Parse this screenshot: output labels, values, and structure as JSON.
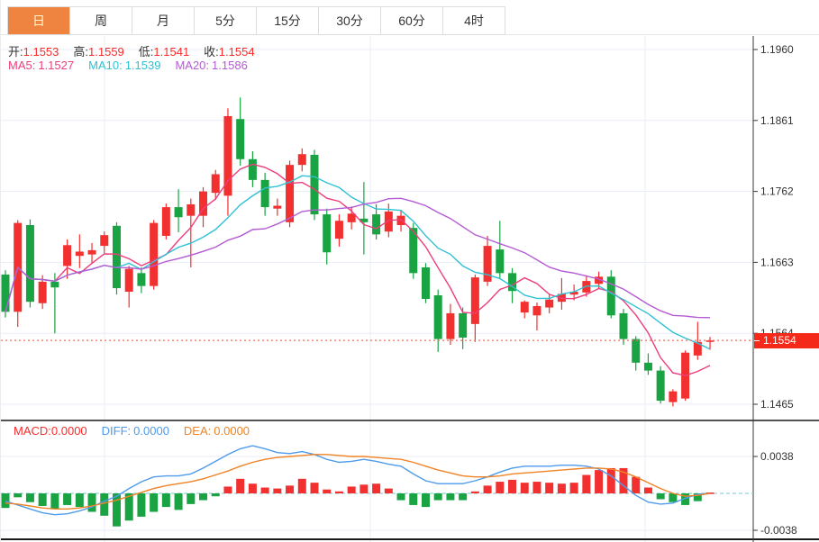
{
  "tabs": {
    "items": [
      {
        "key": "day",
        "label": "日",
        "active": true
      },
      {
        "key": "week",
        "label": "周",
        "active": false
      },
      {
        "key": "month",
        "label": "月",
        "active": false
      },
      {
        "key": "5min",
        "label": "5分",
        "active": false
      },
      {
        "key": "15min",
        "label": "15分",
        "active": false
      },
      {
        "key": "30min",
        "label": "30分",
        "active": false
      },
      {
        "key": "60min",
        "label": "60分",
        "active": false
      },
      {
        "key": "4hour",
        "label": "4时",
        "active": false
      }
    ]
  },
  "ohlc": {
    "open_label": "开:",
    "open": "1.1553",
    "high_label": "高:",
    "high": "1.1559",
    "low_label": "低:",
    "low": "1.1541",
    "close_label": "收:",
    "close": "1.1554"
  },
  "ma": {
    "ma5_label": "MA5:",
    "ma5": "1.1527",
    "ma10_label": "MA10:",
    "ma10": "1.1539",
    "ma20_label": "MA20:",
    "ma20": "1.1586"
  },
  "macd_header": {
    "macd_label": "MACD:",
    "macd": "0.0000",
    "diff_label": "DIFF:",
    "diff": "0.0000",
    "dea_label": "DEA:",
    "dea": "0.0000"
  },
  "price_axis": {
    "ticks": [
      "1.1960",
      "1.1861",
      "1.1762",
      "1.1663",
      "1.1564",
      "1.1465"
    ],
    "current_badge": "1.1554"
  },
  "macd_axis": {
    "ticks": [
      "0.0038",
      "-0.0038"
    ]
  },
  "colors": {
    "up": "#f23030",
    "down": "#1aa342",
    "ma5": "#ee3d7d",
    "ma10": "#2fc1d4",
    "ma20": "#b55bd3",
    "diff": "#4f9bec",
    "dea": "#ef8326",
    "value_red": "#fa2b2b",
    "label_dark": "#333333",
    "badge_bg": "#f5291a",
    "tab_active_bg": "#ef8440",
    "tab_active_text": "#fff6cc",
    "grid": "#e9eef5",
    "axis": "#3a3a3a",
    "frame": "#1a1a1a",
    "dotted_price": "#f56a5a",
    "zero_dash": "#8fd3dc"
  },
  "chart_data": [
    {
      "type": "candlestick",
      "title": "",
      "ylim": [
        1.1465,
        1.196
      ],
      "yticks": [
        1.196,
        1.1861,
        1.1762,
        1.1663,
        1.1564,
        1.1465
      ],
      "current_price": 1.1554,
      "vgrid_x": [
        115,
        410,
        715
      ],
      "overlays": [
        "MA5",
        "MA10",
        "MA20"
      ],
      "candles": [
        [
          1.1646,
          1.1652,
          1.1586,
          1.1594
        ],
        [
          1.1594,
          1.1722,
          1.1573,
          1.1718
        ],
        [
          1.1715,
          1.1723,
          1.16,
          1.1608
        ],
        [
          1.1606,
          1.1645,
          1.1598,
          1.1636
        ],
        [
          1.1636,
          1.1648,
          1.1564,
          1.1628
        ],
        [
          1.1658,
          1.1695,
          1.164,
          1.1687
        ],
        [
          1.1672,
          1.1702,
          1.1655,
          1.1678
        ],
        [
          1.1674,
          1.169,
          1.1662,
          1.168
        ],
        [
          1.1686,
          1.1706,
          1.1676,
          1.1701
        ],
        [
          1.1714,
          1.1719,
          1.1618,
          1.1627
        ],
        [
          1.1622,
          1.1658,
          1.16,
          1.1654
        ],
        [
          1.1648,
          1.1656,
          1.162,
          1.163
        ],
        [
          1.163,
          1.1722,
          1.1625,
          1.1718
        ],
        [
          1.17,
          1.1745,
          1.1695,
          1.174
        ],
        [
          1.174,
          1.1765,
          1.1705,
          1.1726
        ],
        [
          1.1728,
          1.1752,
          1.1656,
          1.1744
        ],
        [
          1.1728,
          1.1768,
          1.1712,
          1.1762
        ],
        [
          1.176,
          1.1792,
          1.175,
          1.1786
        ],
        [
          1.1756,
          1.1878,
          1.1728,
          1.1867
        ],
        [
          1.1863,
          1.1893,
          1.1798,
          1.1807
        ],
        [
          1.1807,
          1.1818,
          1.1768,
          1.1778
        ],
        [
          1.1778,
          1.1788,
          1.1728,
          1.174
        ],
        [
          1.1738,
          1.1752,
          1.1728,
          1.1742
        ],
        [
          1.1719,
          1.1805,
          1.1712,
          1.1799
        ],
        [
          1.1799,
          1.1822,
          1.179,
          1.1814
        ],
        [
          1.1813,
          1.182,
          1.1722,
          1.173
        ],
        [
          1.173,
          1.1738,
          1.166,
          1.1677
        ],
        [
          1.1696,
          1.173,
          1.1685,
          1.1721
        ],
        [
          1.1719,
          1.1741,
          1.1709,
          1.1731
        ],
        [
          1.1724,
          1.1775,
          1.1674,
          1.1719
        ],
        [
          1.173,
          1.1744,
          1.1695,
          1.1702
        ],
        [
          1.1706,
          1.1745,
          1.1698,
          1.1734
        ],
        [
          1.1715,
          1.1736,
          1.1706,
          1.1728
        ],
        [
          1.1711,
          1.1718,
          1.164,
          1.1648
        ],
        [
          1.1656,
          1.1662,
          1.1606,
          1.1612
        ],
        [
          1.1617,
          1.1625,
          1.1538,
          1.1556
        ],
        [
          1.1556,
          1.1605,
          1.1548,
          1.1592
        ],
        [
          1.1592,
          1.16,
          1.1542,
          1.1558
        ],
        [
          1.1577,
          1.1646,
          1.1552,
          1.1642
        ],
        [
          1.1636,
          1.17,
          1.163,
          1.1686
        ],
        [
          1.1681,
          1.1721,
          1.164,
          1.1648
        ],
        [
          1.1648,
          1.1655,
          1.1606,
          1.1623
        ],
        [
          1.1593,
          1.161,
          1.1585,
          1.1608
        ],
        [
          1.1589,
          1.1607,
          1.1568,
          1.1602
        ],
        [
          1.16,
          1.1618,
          1.1592,
          1.1611
        ],
        [
          1.1608,
          1.1641,
          1.1597,
          1.1619
        ],
        [
          1.1618,
          1.1632,
          1.161,
          1.1622
        ],
        [
          1.1621,
          1.1645,
          1.1615,
          1.1637
        ],
        [
          1.1633,
          1.165,
          1.1626,
          1.1643
        ],
        [
          1.1643,
          1.1652,
          1.1585,
          1.1589
        ],
        [
          1.1592,
          1.1598,
          1.1548,
          1.1556
        ],
        [
          1.1556,
          1.156,
          1.1512,
          1.1523
        ],
        [
          1.1523,
          1.1536,
          1.1506,
          1.1512
        ],
        [
          1.1512,
          1.1518,
          1.1466,
          1.147
        ],
        [
          1.1468,
          1.1486,
          1.1462,
          1.1483
        ],
        [
          1.1473,
          1.154,
          1.147,
          1.1537
        ],
        [
          1.1533,
          1.158,
          1.1527,
          1.1552
        ],
        [
          1.1553,
          1.1559,
          1.1541,
          1.1554
        ]
      ]
    },
    {
      "type": "bar",
      "title": "MACD",
      "ylim": [
        -0.0047,
        0.0052
      ],
      "yticks": [
        0.0038,
        -0.0038
      ],
      "vgrid_x": [
        115,
        410,
        715
      ],
      "hist": [
        -0.0015,
        -0.0004,
        -0.0009,
        -0.0013,
        -0.0016,
        -0.0012,
        -0.0014,
        -0.0019,
        -0.0023,
        -0.0034,
        -0.0028,
        -0.0024,
        -0.0019,
        -0.0014,
        -0.0017,
        -0.0011,
        -0.0007,
        -0.0003,
        0.0007,
        0.0015,
        0.001,
        0.0006,
        0.0005,
        0.0008,
        0.0015,
        0.0011,
        0.0004,
        0.0002,
        0.0007,
        0.0009,
        0.001,
        0.0005,
        -0.0007,
        -0.0012,
        -0.0014,
        -0.0007,
        -0.0007,
        -0.0007,
        0.0002,
        0.0008,
        0.0012,
        0.0014,
        0.0011,
        0.0012,
        0.0011,
        0.001,
        0.0011,
        0.0019,
        0.0024,
        0.0026,
        0.0026,
        0.0017,
        0.0006,
        -0.0006,
        -0.0009,
        -0.0012,
        -0.0008,
        0.0
      ],
      "diff": [
        -0.0008,
        -0.0012,
        -0.0016,
        -0.002,
        -0.0022,
        -0.0021,
        -0.0018,
        -0.0014,
        -0.0008,
        -0.0003,
        0.0005,
        0.0012,
        0.0017,
        0.0018,
        0.0018,
        0.002,
        0.0026,
        0.0033,
        0.004,
        0.0046,
        0.0049,
        0.0046,
        0.0042,
        0.0041,
        0.0043,
        0.004,
        0.0035,
        0.0032,
        0.0033,
        0.0035,
        0.0033,
        0.003,
        0.0028,
        0.002,
        0.0013,
        0.001,
        0.001,
        0.001,
        0.0013,
        0.0017,
        0.0022,
        0.0026,
        0.0028,
        0.0028,
        0.0028,
        0.0029,
        0.0029,
        0.0028,
        0.0025,
        0.0018,
        0.0008,
        -0.0002,
        -0.0009,
        -0.0011,
        -0.001,
        -0.0005,
        -0.0001,
        0.0
      ],
      "dea": [
        -0.001,
        -0.0011,
        -0.0013,
        -0.0015,
        -0.0016,
        -0.0016,
        -0.0015,
        -0.0013,
        -0.001,
        -0.0007,
        -0.0003,
        0.0001,
        0.0005,
        0.0008,
        0.001,
        0.0012,
        0.0015,
        0.0019,
        0.0023,
        0.0028,
        0.0032,
        0.0035,
        0.0037,
        0.0038,
        0.0039,
        0.004,
        0.004,
        0.0039,
        0.0038,
        0.0038,
        0.0037,
        0.0036,
        0.0035,
        0.0032,
        0.0028,
        0.0024,
        0.0021,
        0.0018,
        0.0017,
        0.0017,
        0.0018,
        0.002,
        0.0021,
        0.0022,
        0.0023,
        0.0024,
        0.0025,
        0.0026,
        0.0026,
        0.0025,
        0.0022,
        0.0017,
        0.0011,
        0.0005,
        0.0,
        -0.0003,
        -0.0002,
        0.0
      ]
    }
  ]
}
